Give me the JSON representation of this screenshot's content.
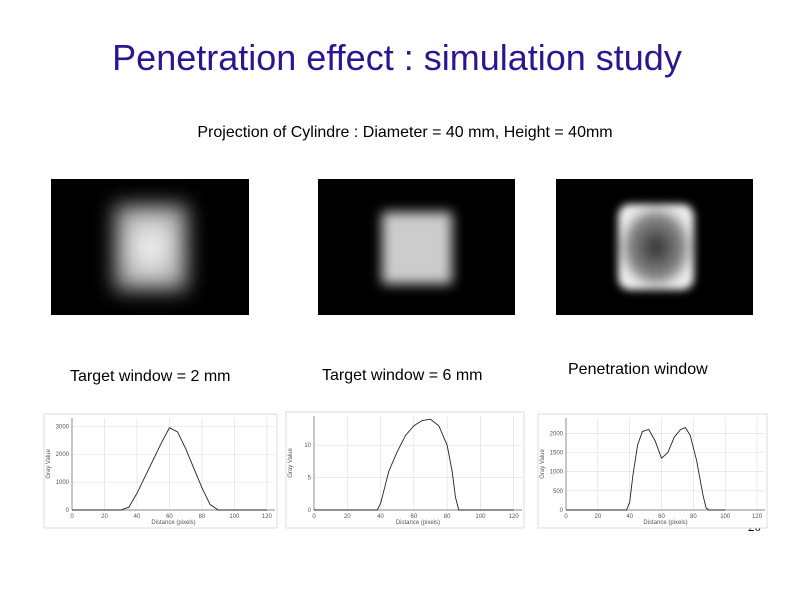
{
  "title": "Penetration effect : simulation study",
  "subtitle": "Projection of Cylindre : Diameter = 40 mm, Height = 40mm",
  "page_number": "20",
  "panels": [
    {
      "caption": "Target window = 2 mm",
      "plot": {
        "type": "line",
        "x_label": "Distance (pixels)",
        "y_label": "Gray Value",
        "x": [
          0,
          30,
          35,
          40,
          45,
          50,
          55,
          60,
          65,
          70,
          75,
          80,
          85,
          90,
          120
        ],
        "values": [
          0,
          0,
          100,
          600,
          1200,
          1800,
          2400,
          2950,
          2800,
          2200,
          1500,
          800,
          200,
          0,
          0
        ],
        "xlim": [
          0,
          125
        ],
        "ylim": [
          0,
          3300
        ],
        "xticks": [
          0,
          20,
          40,
          60,
          80,
          100,
          120
        ],
        "yticks": [
          0,
          1000,
          2000,
          3000
        ]
      }
    },
    {
      "caption": "Target window = 6 mm",
      "plot": {
        "type": "line",
        "x_label": "Distance (pixels)",
        "y_label": "Gray Value",
        "x": [
          0,
          38,
          40,
          42,
          45,
          50,
          55,
          60,
          65,
          70,
          75,
          80,
          83,
          85,
          87,
          120
        ],
        "values": [
          0,
          0,
          1,
          3,
          6,
          9,
          11.5,
          13,
          13.8,
          14,
          13,
          10,
          6,
          2,
          0,
          0
        ],
        "xlim": [
          0,
          125
        ],
        "ylim": [
          0,
          14.5
        ],
        "xticks": [
          0,
          20,
          40,
          60,
          80,
          100,
          120
        ],
        "yticks": [
          0,
          5,
          10
        ]
      }
    },
    {
      "caption": "Penetration window",
      "plot": {
        "type": "line",
        "x_label": "Distance (pixels)",
        "y_label": "Gray Value",
        "x": [
          0,
          38,
          40,
          42,
          45,
          48,
          52,
          56,
          60,
          64,
          68,
          72,
          75,
          78,
          82,
          86,
          88,
          90,
          100
        ],
        "values": [
          0,
          0,
          200,
          900,
          1700,
          2050,
          2100,
          1800,
          1350,
          1500,
          1900,
          2100,
          2150,
          1950,
          1300,
          400,
          50,
          0,
          0
        ],
        "xlim": [
          0,
          125
        ],
        "ylim": [
          0,
          2400
        ],
        "xticks": [
          0,
          20,
          40,
          60,
          80,
          100,
          120
        ],
        "yticks": [
          0,
          500,
          1000,
          1500,
          2000
        ]
      }
    }
  ]
}
